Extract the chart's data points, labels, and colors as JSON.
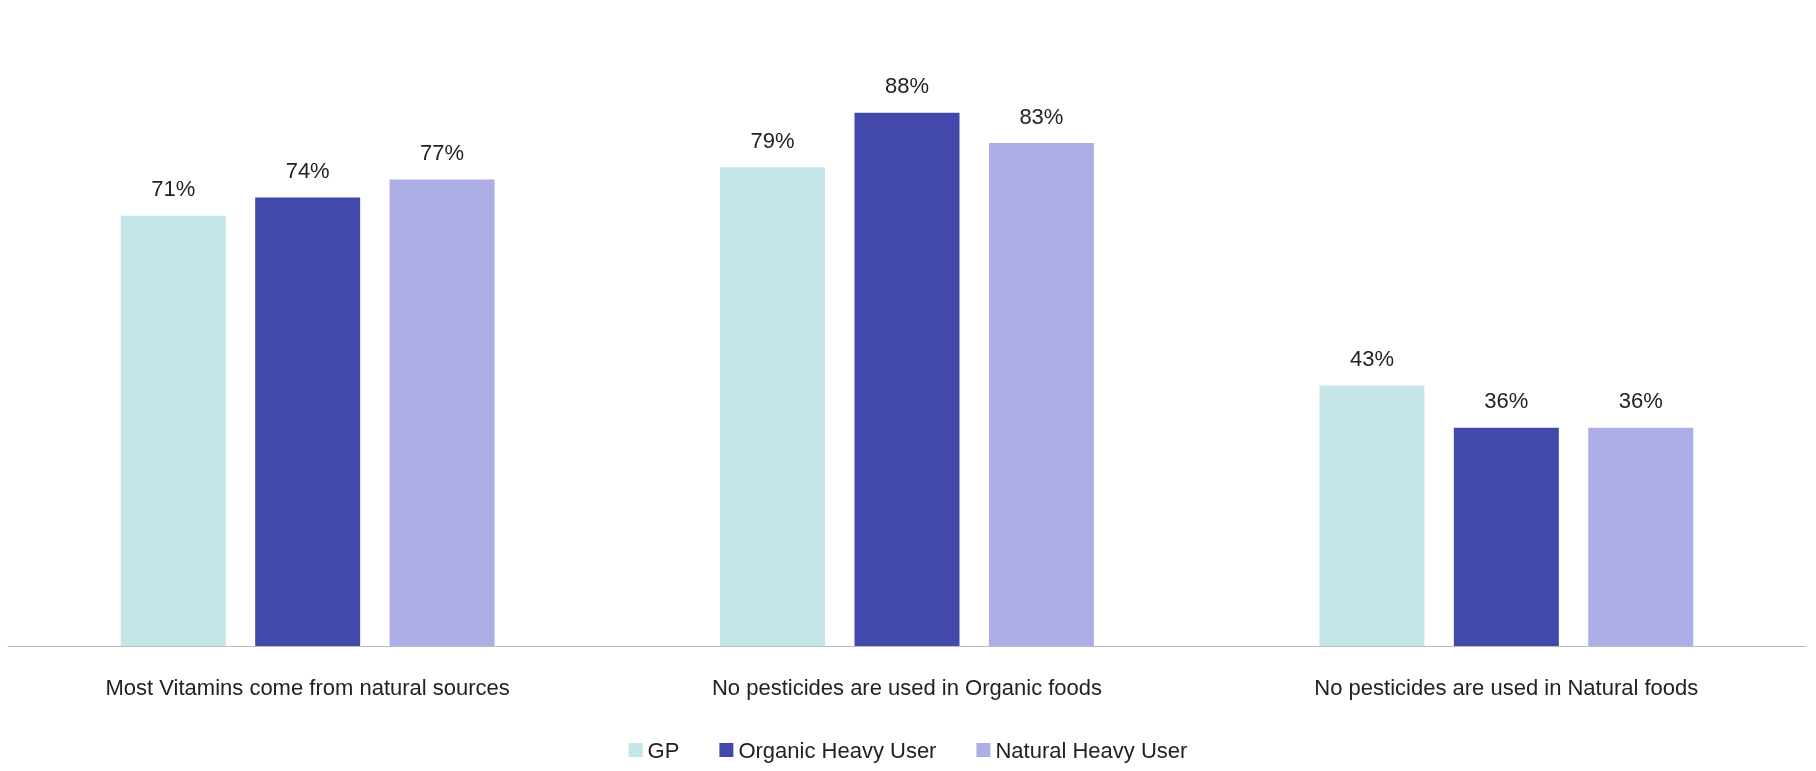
{
  "chart_data": {
    "type": "bar",
    "categories": [
      "Most Vitamins come from natural sources",
      "No pesticides are used in Organic foods",
      "No pesticides are used in Natural foods"
    ],
    "series": [
      {
        "name": "GP",
        "color": "#c5e6e8",
        "values": [
          71,
          79,
          43
        ],
        "value_labels": [
          "71%",
          "79%",
          "43%"
        ]
      },
      {
        "name": "Organic Heavy User",
        "color": "#4349ab",
        "values": [
          74,
          88,
          36
        ],
        "value_labels": [
          "74%",
          "88%",
          "36%"
        ]
      },
      {
        "name": "Natural Heavy User",
        "color": "#aeaee6",
        "values": [
          77,
          83,
          36
        ],
        "value_labels": [
          "77%",
          "83%",
          "36%"
        ]
      }
    ],
    "grid": false,
    "legend": "bottom"
  }
}
